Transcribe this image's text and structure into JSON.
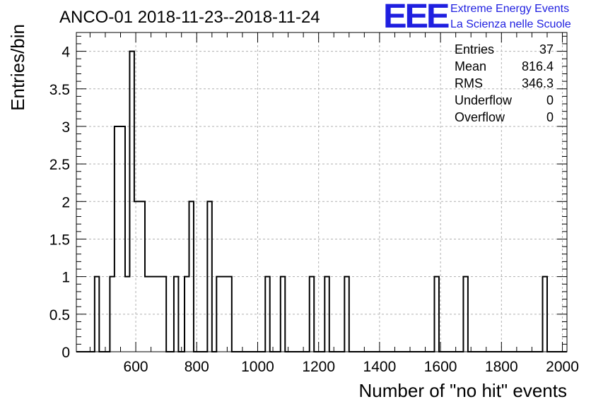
{
  "title": "ANCO-01 2018-11-23--2018-11-24",
  "logo": {
    "mark": "EEE",
    "line1": "Extreme Energy Events",
    "line2": "La Scienza nelle Scuole",
    "color": "#1f1fe0"
  },
  "stats": [
    {
      "label": "Entries",
      "value": "37"
    },
    {
      "label": "Mean",
      "value": "816.4"
    },
    {
      "label": "RMS",
      "value": "346.3"
    },
    {
      "label": "Underflow",
      "value": "0"
    },
    {
      "label": "Overflow",
      "value": "0"
    }
  ],
  "chart_data": {
    "type": "histogram",
    "title": "ANCO-01 2018-11-23--2018-11-24",
    "xlabel": "Number of \"no hit\" events",
    "ylabel": "Entries/bin",
    "xlim": [
      405,
      2015
    ],
    "ylim": [
      0,
      4.25
    ],
    "grid": true,
    "xticks": [
      600,
      800,
      1000,
      1200,
      1400,
      1600,
      1800,
      2000
    ],
    "xtick_labels": [
      "600",
      "800",
      "1000",
      "1200",
      "1400",
      "1600",
      "1800",
      "2000"
    ],
    "yticks": [
      0,
      0.5,
      1,
      1.5,
      2,
      2.5,
      3,
      3.5,
      4
    ],
    "ytick_labels": [
      "0",
      "0.5",
      "1",
      "1.5",
      "2",
      "2.5",
      "3",
      "3.5",
      "4"
    ],
    "bins": [
      {
        "x0": 465,
        "x1": 480,
        "y": 1
      },
      {
        "x0": 515,
        "x1": 530,
        "y": 1
      },
      {
        "x0": 530,
        "x1": 565,
        "y": 3
      },
      {
        "x0": 565,
        "x1": 580,
        "y": 1
      },
      {
        "x0": 580,
        "x1": 595,
        "y": 4
      },
      {
        "x0": 595,
        "x1": 630,
        "y": 2
      },
      {
        "x0": 630,
        "x1": 700,
        "y": 1
      },
      {
        "x0": 725,
        "x1": 740,
        "y": 1
      },
      {
        "x0": 760,
        "x1": 775,
        "y": 1
      },
      {
        "x0": 775,
        "x1": 790,
        "y": 2
      },
      {
        "x0": 835,
        "x1": 850,
        "y": 2
      },
      {
        "x0": 865,
        "x1": 915,
        "y": 1
      },
      {
        "x0": 1025,
        "x1": 1040,
        "y": 1
      },
      {
        "x0": 1075,
        "x1": 1090,
        "y": 1
      },
      {
        "x0": 1170,
        "x1": 1185,
        "y": 1
      },
      {
        "x0": 1220,
        "x1": 1235,
        "y": 1
      },
      {
        "x0": 1285,
        "x1": 1300,
        "y": 1
      },
      {
        "x0": 1580,
        "x1": 1595,
        "y": 1
      },
      {
        "x0": 1675,
        "x1": 1690,
        "y": 1
      },
      {
        "x0": 1935,
        "x1": 1950,
        "y": 1
      }
    ]
  }
}
